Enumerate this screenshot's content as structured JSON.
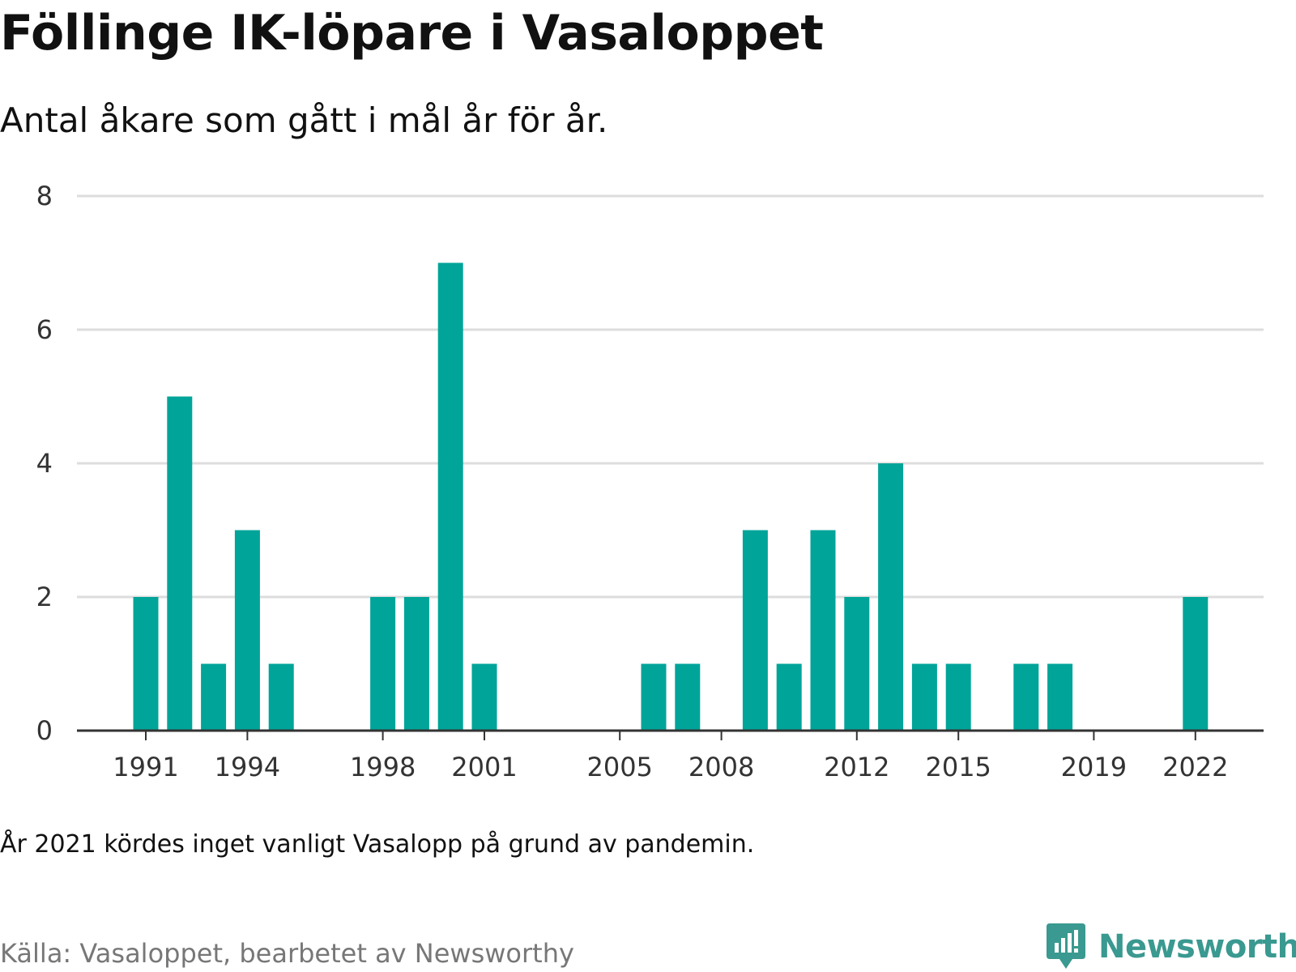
{
  "title": "Föllinge IK-löpare i Vasaloppet",
  "subtitle": "Antal åkare som gått i mål år för år.",
  "note": "År 2021 kördes inget vanligt Vasalopp på grund av pandemin.",
  "source": "Källa: Vasaloppet, bearbetet av Newsworthy",
  "logo_text": "Newsworthy",
  "colors": {
    "bar": "#00a499",
    "grid": "#dddddd",
    "axis": "#333333",
    "logo": "#3a9990"
  },
  "chart_data": {
    "type": "bar",
    "title": "Föllinge IK-löpare i Vasaloppet",
    "subtitle": "Antal åkare som gått i mål år för år.",
    "xlabel": "",
    "ylabel": "",
    "ylim": [
      0,
      8
    ],
    "yticks": [
      0,
      2,
      4,
      6,
      8
    ],
    "xticks": [
      1991,
      1994,
      1998,
      2001,
      2005,
      2008,
      2012,
      2015,
      2019,
      2022
    ],
    "grid": true,
    "categories": [
      1991,
      1992,
      1993,
      1994,
      1995,
      1996,
      1997,
      1998,
      1999,
      2000,
      2001,
      2002,
      2003,
      2004,
      2005,
      2006,
      2007,
      2008,
      2009,
      2010,
      2011,
      2012,
      2013,
      2014,
      2015,
      2016,
      2017,
      2018,
      2019,
      2020,
      2021,
      2022
    ],
    "values": [
      2,
      5,
      1,
      3,
      1,
      0,
      0,
      2,
      2,
      7,
      1,
      0,
      0,
      0,
      0,
      1,
      1,
      0,
      3,
      1,
      3,
      2,
      4,
      1,
      1,
      0,
      1,
      1,
      0,
      0,
      0,
      2
    ]
  }
}
